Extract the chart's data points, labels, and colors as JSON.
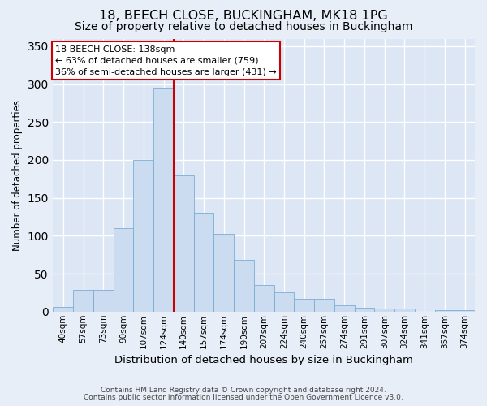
{
  "title1": "18, BEECH CLOSE, BUCKINGHAM, MK18 1PG",
  "title2": "Size of property relative to detached houses in Buckingham",
  "xlabel": "Distribution of detached houses by size in Buckingham",
  "ylabel": "Number of detached properties",
  "categories": [
    "40sqm",
    "57sqm",
    "73sqm",
    "90sqm",
    "107sqm",
    "124sqm",
    "140sqm",
    "157sqm",
    "174sqm",
    "190sqm",
    "207sqm",
    "224sqm",
    "240sqm",
    "257sqm",
    "274sqm",
    "291sqm",
    "307sqm",
    "324sqm",
    "341sqm",
    "357sqm",
    "374sqm"
  ],
  "values": [
    6,
    29,
    29,
    110,
    200,
    295,
    180,
    130,
    103,
    68,
    35,
    25,
    17,
    17,
    8,
    5,
    4,
    4,
    0,
    2,
    2
  ],
  "bar_color": "#ccdcf0",
  "bar_edge_color": "#7aadd4",
  "annotation_text": "18 BEECH CLOSE: 138sqm\n← 63% of detached houses are smaller (759)\n36% of semi-detached houses are larger (431) →",
  "annotation_box_color": "#ffffff",
  "annotation_box_edge": "#cc0000",
  "ylim": [
    0,
    360
  ],
  "yticks": [
    0,
    50,
    100,
    150,
    200,
    250,
    300,
    350
  ],
  "footer1": "Contains HM Land Registry data © Crown copyright and database right 2024.",
  "footer2": "Contains public sector information licensed under the Open Government Licence v3.0.",
  "bg_color": "#e8eef8",
  "axis_bg_color": "#dce6f5",
  "grid_color": "#ffffff",
  "title1_fontsize": 11.5,
  "title2_fontsize": 10,
  "property_line_x": 5.5,
  "property_line_color": "#cc0000",
  "footer_fontsize": 6.5
}
